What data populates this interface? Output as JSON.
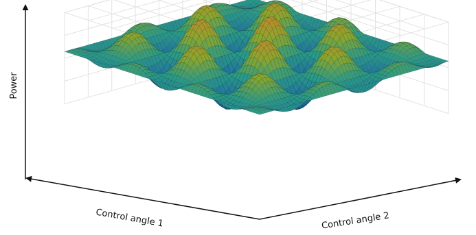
{
  "chart_data": {
    "type": "surface",
    "zlabel": "Power",
    "xlabel": "Control angle 1",
    "ylabel": "Control angle 2",
    "grid": true,
    "colormap": [
      "#2a1b5e",
      "#1f6fa0",
      "#2a9a86",
      "#8aa62e",
      "#c08a2a"
    ]
  }
}
